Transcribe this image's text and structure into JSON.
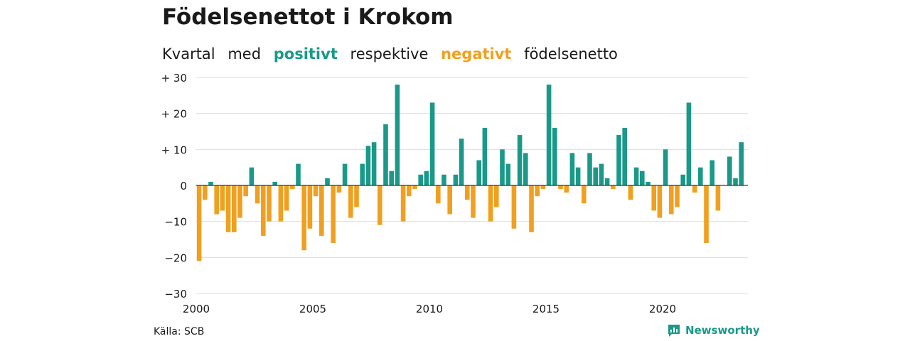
{
  "title": "Födelsenettot i Krokom",
  "subtitle": {
    "w1": "Kvartal",
    "w2": "med",
    "pos": "positivt",
    "w3": "respektive",
    "neg": "negativt",
    "w4": "födelsenetto"
  },
  "source": "Källa: SCB",
  "brand": "Newsworthy",
  "colors": {
    "positive": "#1a9988",
    "negative": "#f0a020",
    "grid": "#dddddd",
    "text": "#1a1a1a"
  },
  "chart_data": {
    "type": "bar",
    "start_quarter": "2000 Q1",
    "ylim": [
      -30,
      30
    ],
    "yticks": [
      {
        "value": 30,
        "label": "+ 30"
      },
      {
        "value": 20,
        "label": "+ 20"
      },
      {
        "value": 10,
        "label": "+ 10"
      },
      {
        "value": 0,
        "label": "0"
      },
      {
        "value": -10,
        "label": "−10"
      },
      {
        "value": -20,
        "label": "−20"
      },
      {
        "value": -30,
        "label": "−30"
      }
    ],
    "xticks": [
      {
        "year": 2000,
        "label": "2000"
      },
      {
        "year": 2005,
        "label": "2005"
      },
      {
        "year": 2010,
        "label": "2010"
      },
      {
        "year": 2015,
        "label": "2015"
      },
      {
        "year": 2020,
        "label": "2020"
      }
    ],
    "grid": true,
    "values": [
      -21,
      -4,
      1,
      -8,
      -7,
      -13,
      -13,
      -9,
      -3,
      5,
      -5,
      -14,
      -10,
      1,
      -10,
      -7,
      -1,
      6,
      -18,
      -12,
      -3,
      -14,
      2,
      -16,
      -2,
      6,
      -9,
      -6,
      6,
      11,
      12,
      -11,
      17,
      4,
      28,
      -10,
      -3,
      -1,
      3,
      4,
      23,
      -5,
      3,
      -8,
      3,
      13,
      -4,
      -9,
      7,
      16,
      -10,
      -6,
      10,
      6,
      -12,
      14,
      9,
      -13,
      -3,
      -1,
      28,
      16,
      -1,
      -2,
      9,
      5,
      -5,
      9,
      5,
      6,
      2,
      -1,
      14,
      16,
      -4,
      5,
      4,
      1,
      -7,
      -9,
      10,
      -8,
      -6,
      3,
      23,
      -2,
      5,
      -16,
      7,
      -7,
      0,
      8,
      2,
      12
    ]
  }
}
